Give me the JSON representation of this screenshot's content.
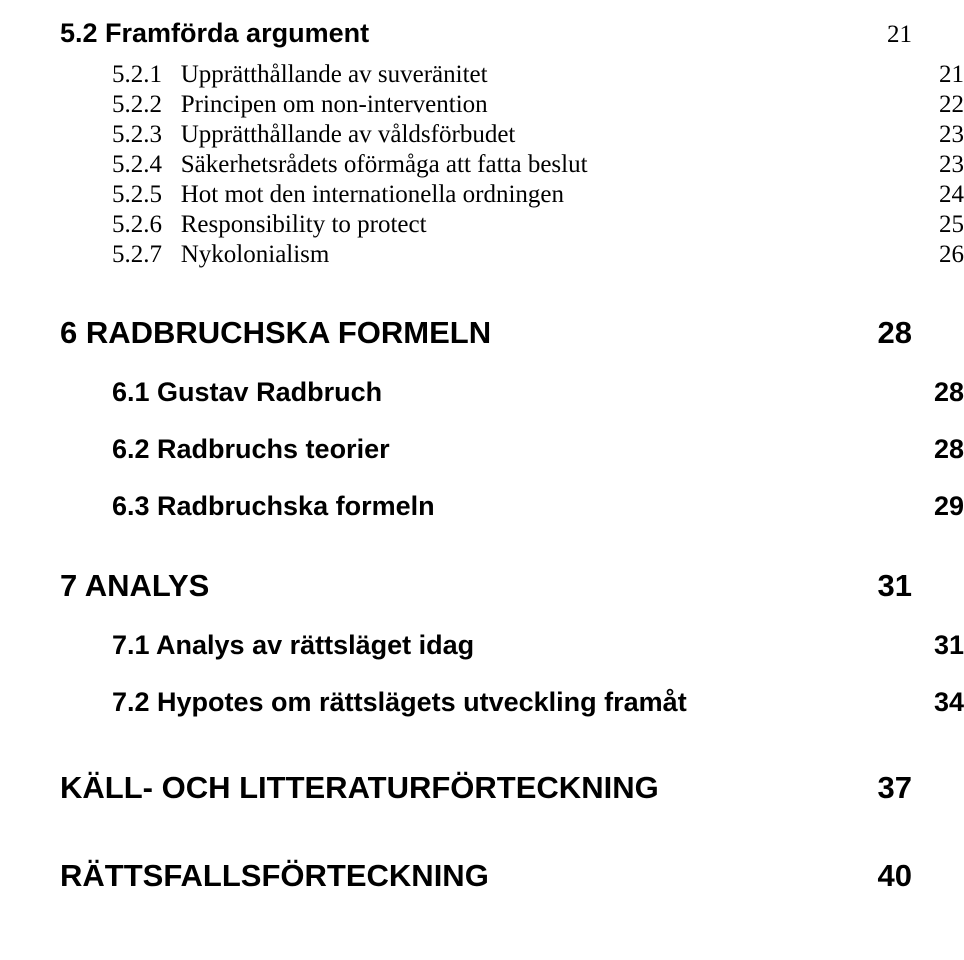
{
  "sec52": {
    "label": "5.2   Framförda argument",
    "page": "21"
  },
  "subs": [
    {
      "label": "5.2.1   Upprätthållande av suveränitet",
      "page": "21"
    },
    {
      "label": "5.2.2   Principen om non-intervention",
      "page": "22"
    },
    {
      "label": "5.2.3   Upprätthållande av våldsförbudet",
      "page": "23"
    },
    {
      "label": "5.2.4   Säkerhetsrådets oförmåga att fatta beslut",
      "page": "23"
    },
    {
      "label": "5.2.5   Hot mot den internationella ordningen",
      "page": "24"
    },
    {
      "label": "5.2.6   Responsibility to protect",
      "page": "25"
    },
    {
      "label": "5.2.7   Nykolonialism",
      "page": "26"
    }
  ],
  "ch6": {
    "label": "6    RADBRUCHSKA FORMELN",
    "page": "28"
  },
  "ch6subs": [
    {
      "label": "6.1   Gustav Radbruch",
      "page": "28"
    },
    {
      "label": "6.2   Radbruchs teorier",
      "page": "28"
    },
    {
      "label": "6.3   Radbruchska formeln",
      "page": "29"
    }
  ],
  "ch7": {
    "label": "7    ANALYS",
    "page": "31"
  },
  "ch7subs": [
    {
      "label": "7.1   Analys av rättsläget idag",
      "page": "31"
    },
    {
      "label": "7.2   Hypotes om rättslägets utveckling framåt",
      "page": "34"
    }
  ],
  "kall": {
    "label": "KÄLL- OCH LITTERATURFÖRTECKNING",
    "page": "37"
  },
  "ratt": {
    "label": "RÄTTSFALLSFÖRTECKNING",
    "page": "40"
  }
}
